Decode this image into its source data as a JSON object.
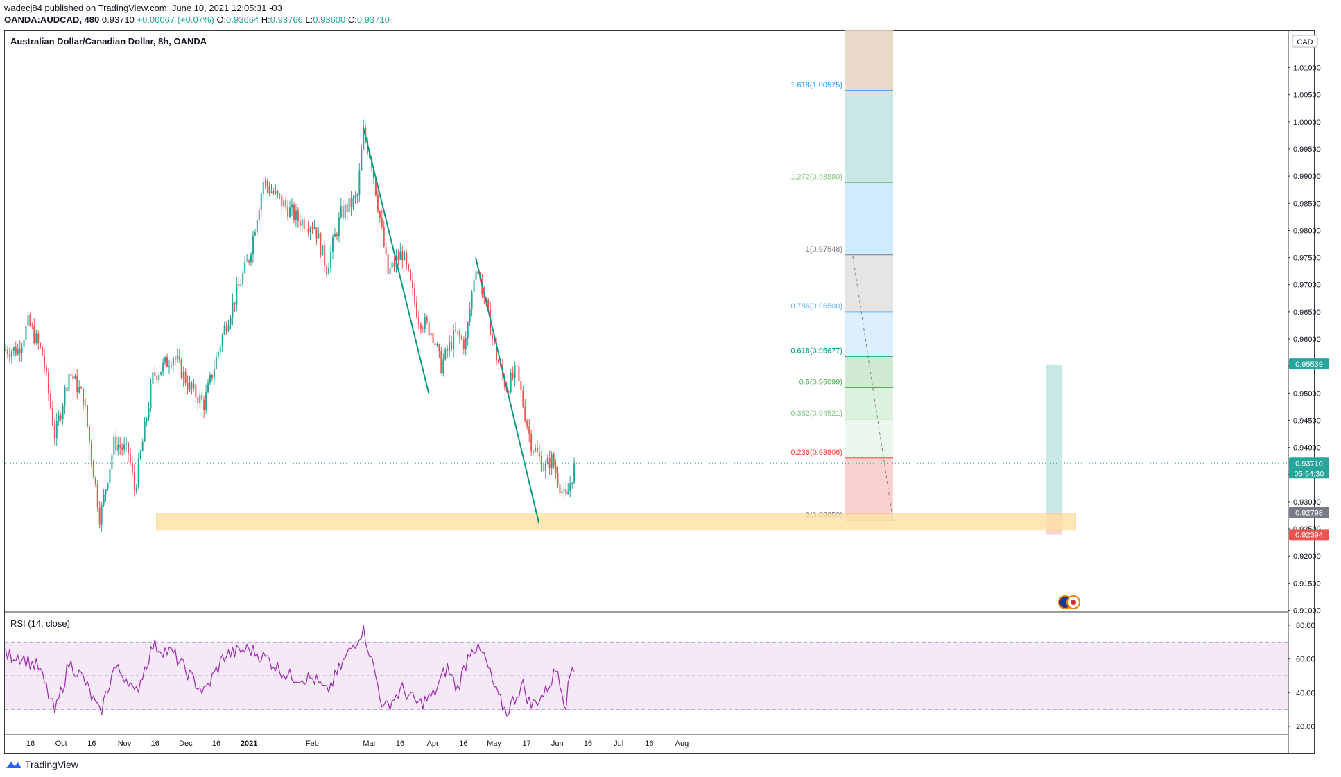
{
  "header": {
    "line1": "wadecj84 published on TradingView.com, June 10, 2021 12:05:31 -03",
    "symbol": "OANDA:AUDCAD, 480",
    "price": "0.93710",
    "change": "+0.00067 (+0.07%)",
    "ohlc": {
      "o_label": "O:",
      "o": "0.93664",
      "h_label": "H:",
      "h": "0.93766",
      "l_label": "L:",
      "l": "0.93600",
      "c_label": "C:",
      "c": "0.93710"
    }
  },
  "chart_title": "Australian Dollar/Canadian Dollar, 8h, OANDA",
  "currency_badge": "CAD",
  "footer_brand": "TradingView",
  "colors": {
    "up": "#26a69a",
    "down": "#ef5350",
    "rsi": "#9c27b0",
    "trendline": "#089981",
    "zone_fill": "#ffe0a3",
    "zone_border": "#f5a623"
  },
  "chart_data": {
    "type": "candlestick",
    "price_axis": {
      "min": 0.91,
      "max": 1.015,
      "ticks": [
        "1.01000",
        "1.00500",
        "1.00000",
        "0.99500",
        "0.99000",
        "0.98500",
        "0.98000",
        "0.97500",
        "0.97000",
        "0.96500",
        "0.96000",
        "0.95500",
        "0.95000",
        "0.94500",
        "0.94000",
        "0.93500",
        "0.93000",
        "0.92500",
        "0.92000",
        "0.91500",
        "0.91000"
      ]
    },
    "time_axis": {
      "labels": [
        "16",
        "Oct",
        "16",
        "Nov",
        "16",
        "Dec",
        "16",
        "2021",
        "Feb",
        "Mar",
        "16",
        "Apr",
        "16",
        "May",
        "17",
        "Jun",
        "16",
        "Jul",
        "16",
        "Aug"
      ]
    },
    "price_series_anchors": [
      [
        "Sep 10",
        0.958
      ],
      [
        "Sep 15",
        0.963
      ],
      [
        "Sep 22",
        0.957
      ],
      [
        "Sep 28",
        0.942
      ],
      [
        "Oct 5",
        0.954
      ],
      [
        "Oct 12",
        0.949
      ],
      [
        "Oct 20",
        0.927
      ],
      [
        "Oct 27",
        0.941
      ],
      [
        "Nov 3",
        0.939
      ],
      [
        "Nov 6",
        0.932
      ],
      [
        "Nov 15",
        0.953
      ],
      [
        "Nov 25",
        0.957
      ],
      [
        "Dec 3",
        0.951
      ],
      [
        "Dec 10",
        0.948
      ],
      [
        "Dec 20",
        0.962
      ],
      [
        "Jan 1",
        0.975
      ],
      [
        "Jan 8",
        0.989
      ],
      [
        "Jan 15",
        0.986
      ],
      [
        "Jan 25",
        0.982
      ],
      [
        "Feb 2",
        0.981
      ],
      [
        "Feb 8",
        0.973
      ],
      [
        "Feb 15",
        0.983
      ],
      [
        "Feb 23",
        0.986
      ],
      [
        "Feb 26",
        0.998
      ],
      [
        "Mar 2",
        0.993
      ],
      [
        "Mar 10",
        0.972
      ],
      [
        "Mar 17",
        0.976
      ],
      [
        "Mar 25",
        0.964
      ],
      [
        "Apr 1",
        0.961
      ],
      [
        "Apr 5",
        0.955
      ],
      [
        "Apr 12",
        0.961
      ],
      [
        "Apr 17",
        0.959
      ],
      [
        "Apr 22",
        0.974
      ],
      [
        "Apr 26",
        0.968
      ],
      [
        "May 2",
        0.957
      ],
      [
        "May 7",
        0.951
      ],
      [
        "May 12",
        0.954
      ],
      [
        "May 19",
        0.941
      ],
      [
        "May 26",
        0.936
      ],
      [
        "May 29",
        0.938
      ],
      [
        "Jun 5",
        0.93
      ],
      [
        "Jun 9",
        0.936
      ],
      [
        "Jun 10",
        0.9371
      ]
    ],
    "current_price": 0.9371,
    "countdown": "05:54:30",
    "price_labels": [
      {
        "text": "0.95539",
        "color": "#26a69a"
      },
      {
        "text": "0.93710",
        "color": "#26a69a"
      },
      {
        "text": "0.92798",
        "color": "#787b86"
      },
      {
        "text": "0.92394",
        "color": "#ef5350"
      }
    ],
    "fibonacci_extension": {
      "levels": [
        {
          "ratio": "0",
          "price": 0.9265,
          "label": "0(0.92650)",
          "color": "#787b86"
        },
        {
          "ratio": "0.236",
          "price": 0.93806,
          "label": "0.236(0.93806)",
          "color": "#f44336"
        },
        {
          "ratio": "0.382",
          "price": 0.94521,
          "label": "0.382(0.94521)",
          "color": "#81c784"
        },
        {
          "ratio": "0.5",
          "price": 0.95099,
          "label": "0.5(0.95099)",
          "color": "#4caf50"
        },
        {
          "ratio": "0.618",
          "price": 0.95677,
          "label": "0.618(0.95677)",
          "color": "#009688"
        },
        {
          "ratio": "0.786",
          "price": 0.965,
          "label": "0.786(0.96500)",
          "color": "#64b5f6"
        },
        {
          "ratio": "1",
          "price": 0.97548,
          "label": "1(0.97548)",
          "color": "#787b86"
        },
        {
          "ratio": "1.272",
          "price": 0.9888,
          "label": "1.272(0.98880)",
          "color": "#81c784"
        },
        {
          "ratio": "1.618",
          "price": 1.00575,
          "label": "1.618(1.00575)",
          "color": "#2196f3"
        }
      ]
    },
    "support_zone": {
      "from": 0.9248,
      "to": 0.9278
    },
    "trendlines": [
      {
        "from": [
          "Feb 26",
          0.999
        ],
        "to": [
          "Mar 30",
          0.95
        ]
      },
      {
        "from": [
          "Apr 22",
          0.975
        ],
        "to": [
          "May 23",
          0.926
        ]
      }
    ],
    "rsi": {
      "title": "RSI (14, close)",
      "axis_ticks": [
        "80.00",
        "60.00",
        "40.00",
        "20.00"
      ],
      "upper_band": 70,
      "lower_band": 30,
      "anchors": [
        [
          "Sep 10",
          62
        ],
        [
          "Sep 20",
          55
        ],
        [
          "Sep 28",
          28
        ],
        [
          "Oct 5",
          58
        ],
        [
          "Oct 12",
          48
        ],
        [
          "Oct 20",
          27
        ],
        [
          "Oct 27",
          55
        ],
        [
          "Nov 3",
          48
        ],
        [
          "Nov 6",
          38
        ],
        [
          "Nov 15",
          68
        ],
        [
          "Nov 25",
          63
        ],
        [
          "Dec 3",
          50
        ],
        [
          "Dec 10",
          40
        ],
        [
          "Dec 20",
          62
        ],
        [
          "Jan 1",
          66
        ],
        [
          "Jan 10",
          60
        ],
        [
          "Jan 20",
          50
        ],
        [
          "Feb 2",
          48
        ],
        [
          "Feb 8",
          40
        ],
        [
          "Feb 18",
          62
        ],
        [
          "Feb 26",
          78
        ],
        [
          "Mar 3",
          55
        ],
        [
          "Mar 8",
          30
        ],
        [
          "Mar 17",
          42
        ],
        [
          "Mar 25",
          33
        ],
        [
          "Apr 1",
          38
        ],
        [
          "Apr 8",
          55
        ],
        [
          "Apr 13",
          42
        ],
        [
          "Apr 20",
          68
        ],
        [
          "Apr 26",
          62
        ],
        [
          "May 2",
          40
        ],
        [
          "May 7",
          28
        ],
        [
          "May 15",
          45
        ],
        [
          "May 19",
          32
        ],
        [
          "May 26",
          40
        ],
        [
          "Jun 1",
          55
        ],
        [
          "Jun 5",
          32
        ],
        [
          "Jun 8",
          56
        ],
        [
          "Jun 10",
          55
        ]
      ]
    }
  }
}
